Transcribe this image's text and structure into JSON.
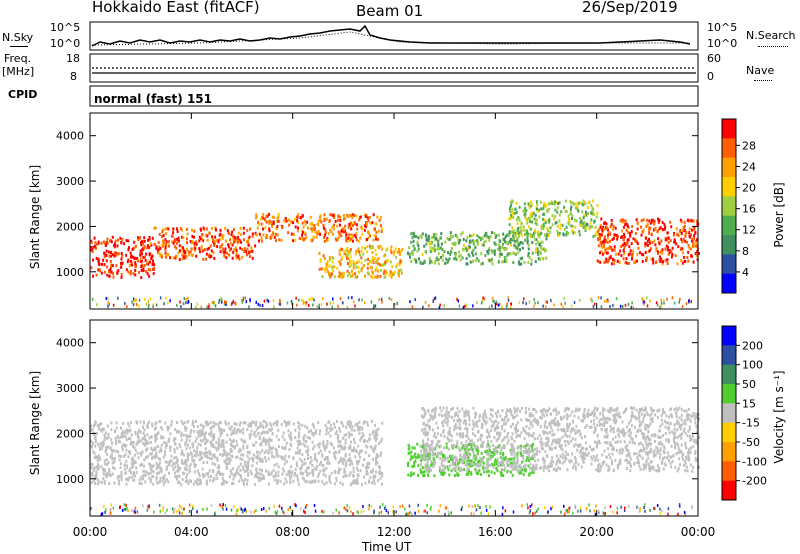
{
  "header": {
    "station": "Hokkaido East (fitACF)",
    "beam": "Beam 01",
    "date": "26/Sep/2019"
  },
  "noise_panel": {
    "left_label": "N.Sky",
    "left_ticks": [
      "10^5",
      "10^0"
    ],
    "right_label": "N.Search",
    "right_ticks": [
      "10^5",
      "10^0"
    ]
  },
  "freq_panel": {
    "left_label_1": "Freq.",
    "left_label_2": "[MHz]",
    "left_ticks": [
      "18",
      "8"
    ],
    "right_label": "Nave",
    "right_ticks": [
      "60",
      "0"
    ]
  },
  "cpid_panel": {
    "label": "CPID",
    "value": "normal (fast) 151"
  },
  "colors": {
    "power_scale": [
      "#0000ff",
      "#2f4fa0",
      "#3f8f5f",
      "#4faf4f",
      "#9fcf3f",
      "#ffcf00",
      "#ff9f00",
      "#ff5f00",
      "#ff0000"
    ],
    "velocity_scale": [
      "#0000ff",
      "#2f4fa0",
      "#3f8f5f",
      "#4fcf2f",
      "#c0c0c0",
      "#ffcf00",
      "#ff9f00",
      "#ff5f00",
      "#ff0000"
    ]
  },
  "x_axis": {
    "ticks": [
      "00:00",
      "04:00",
      "08:00",
      "12:00",
      "16:00",
      "20:00",
      "00:00"
    ],
    "label": "Time UT"
  },
  "chart_data": [
    {
      "type": "heatmap",
      "title": "",
      "ylabel": "Slant Range [km]",
      "yticks": [
        "1000",
        "2000",
        "3000",
        "4000"
      ],
      "ylim": [
        180,
        4500
      ],
      "xlim": [
        0,
        24
      ],
      "colorbar": {
        "label": "Power [dB]",
        "ticks": [
          "4",
          "8",
          "12",
          "16",
          "20",
          "24",
          "28"
        ],
        "range": [
          0,
          30
        ]
      },
      "echo_bands": [
        {
          "t_start": 0,
          "t_end": 2.5,
          "range_low": 900,
          "range_high": 1800,
          "value": 28
        },
        {
          "t_start": 2.5,
          "t_end": 6.5,
          "range_low": 1300,
          "range_high": 2000,
          "value": 26
        },
        {
          "t_start": 6.5,
          "t_end": 11.5,
          "range_low": 1700,
          "range_high": 2300,
          "value": 24
        },
        {
          "t_start": 9,
          "t_end": 12.3,
          "range_low": 900,
          "range_high": 1600,
          "value": 20
        },
        {
          "t_start": 12.5,
          "t_end": 18,
          "range_low": 1200,
          "range_high": 1900,
          "value": 12
        },
        {
          "t_start": 16.5,
          "t_end": 20,
          "range_low": 1800,
          "range_high": 2600,
          "value": 14
        },
        {
          "t_start": 20,
          "t_end": 24,
          "range_low": 1200,
          "range_high": 2200,
          "value": 27
        }
      ]
    },
    {
      "type": "heatmap",
      "title": "",
      "ylabel": "Slant Range [km]",
      "yticks": [
        "1000",
        "2000",
        "3000",
        "4000"
      ],
      "ylim": [
        180,
        4500
      ],
      "xlim": [
        0,
        24
      ],
      "colorbar": {
        "label": "Velocity [m s⁻¹]",
        "ticks": [
          "200",
          "100",
          "50",
          "15",
          "-15",
          "-50",
          "-100",
          "-200"
        ],
        "range": [
          -250,
          250
        ]
      },
      "echo_bands": [
        {
          "t_start": 0,
          "t_end": 11.5,
          "range_low": 900,
          "range_high": 2300,
          "value": 0
        },
        {
          "t_start": 12.5,
          "t_end": 17.5,
          "range_low": 1100,
          "range_high": 1800,
          "value": 40
        },
        {
          "t_start": 13,
          "t_end": 24,
          "range_low": 1200,
          "range_high": 2600,
          "value": 0
        }
      ]
    }
  ]
}
